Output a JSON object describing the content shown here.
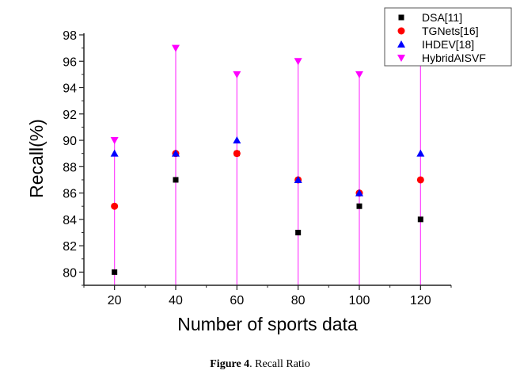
{
  "chart_data": {
    "type": "scatter",
    "xlabel": "Number of sports data",
    "ylabel": "Recall(%)",
    "x": [
      20,
      40,
      60,
      80,
      100,
      120
    ],
    "xticks": [
      "20",
      "40",
      "60",
      "80",
      "100",
      "120"
    ],
    "yticks": [
      "80",
      "82",
      "84",
      "86",
      "88",
      "90",
      "92",
      "94",
      "96",
      "98"
    ],
    "xlim": [
      10,
      130
    ],
    "ylim": [
      79,
      98
    ],
    "grid": false,
    "legend_position": "top-right",
    "series": [
      {
        "name": "DSA[11]",
        "marker": "square",
        "color": "#000000",
        "values": [
          80,
          87,
          89,
          83,
          85,
          84
        ]
      },
      {
        "name": "TGNets[16]",
        "marker": "circle",
        "color": "#ff0000",
        "values": [
          85,
          89,
          89,
          87,
          86,
          87
        ]
      },
      {
        "name": "IHDEV[18]",
        "marker": "triangle-up",
        "color": "#0000ff",
        "values": [
          89,
          89,
          90,
          87,
          86,
          89
        ]
      },
      {
        "name": "HybridAISVF",
        "marker": "triangle-down",
        "color": "#ff00ff",
        "values": [
          90,
          97,
          95,
          96,
          95,
          96
        ],
        "drop_lines": true
      }
    ]
  },
  "caption": {
    "label": "Figure 4",
    "text": ". Recall Ratio"
  }
}
